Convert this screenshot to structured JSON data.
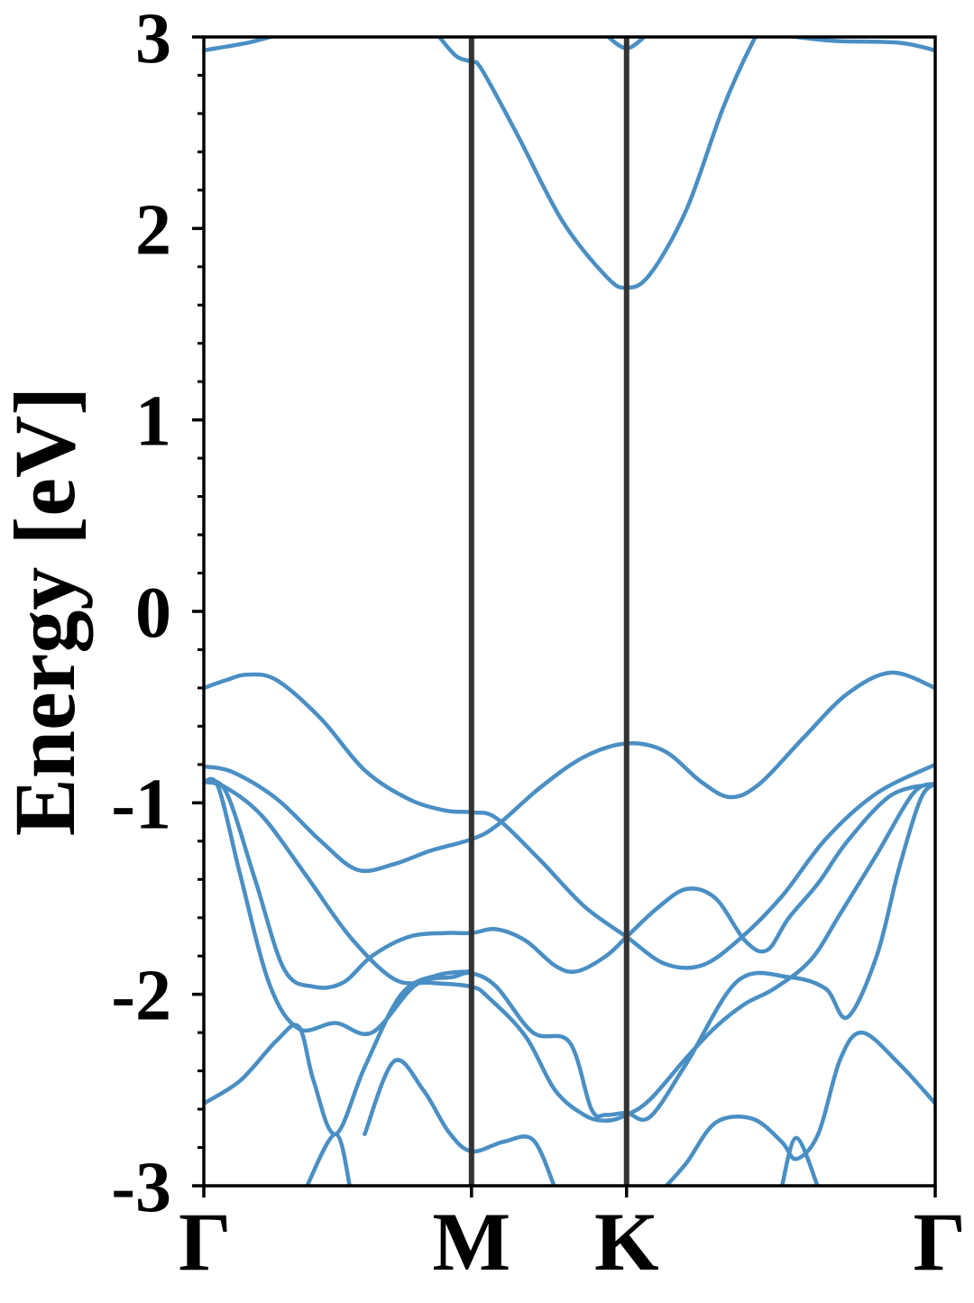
{
  "chart_data": {
    "type": "line",
    "title": "",
    "ylabel": "Energy [eV]",
    "xlabel": "",
    "ylim": [
      -3,
      3
    ],
    "yticks": [
      "3",
      "2",
      "1",
      "0",
      "-1",
      "-2",
      "-3"
    ],
    "ytick_values": [
      3,
      2,
      1,
      0,
      -1,
      -2,
      -3
    ],
    "yminor_step": 0.2,
    "x_is_kpath": true,
    "xticks": [
      "Γ",
      "M",
      "K",
      "Γ"
    ],
    "xtick_positions": [
      0.0,
      0.366,
      0.578,
      1.0
    ],
    "high_symmetry_lines": [
      0.366,
      0.578
    ],
    "line_color": "#4a8fc4",
    "symmetry_line_color": "#333333",
    "grid": false,
    "series": [
      {
        "values": [
          [
            0.0,
            2.93
          ],
          [
            0.06,
            2.97
          ],
          [
            0.1,
            3.01
          ]
        ]
      },
      {
        "values": [
          [
            0.32,
            3.01
          ],
          [
            0.345,
            2.9
          ],
          [
            0.366,
            2.87
          ],
          [
            0.38,
            2.83
          ],
          [
            0.43,
            2.48
          ],
          [
            0.49,
            2.04
          ],
          [
            0.55,
            1.75
          ],
          [
            0.578,
            1.69
          ],
          [
            0.61,
            1.76
          ],
          [
            0.66,
            2.1
          ],
          [
            0.71,
            2.63
          ],
          [
            0.75,
            2.97
          ],
          [
            0.76,
            3.01
          ]
        ]
      },
      {
        "values": [
          [
            0.55,
            3.01
          ],
          [
            0.578,
            2.94
          ],
          [
            0.605,
            3.01
          ]
        ]
      },
      {
        "values": [
          [
            0.79,
            3.01
          ],
          [
            0.86,
            2.98
          ],
          [
            0.95,
            2.97
          ],
          [
            1.0,
            2.93
          ]
        ]
      },
      {
        "values": [
          [
            0.0,
            -0.4
          ],
          [
            0.03,
            -0.36
          ],
          [
            0.06,
            -0.33
          ],
          [
            0.1,
            -0.36
          ],
          [
            0.16,
            -0.56
          ],
          [
            0.22,
            -0.83
          ],
          [
            0.28,
            -0.98
          ],
          [
            0.33,
            -1.04
          ],
          [
            0.366,
            -1.05
          ],
          [
            0.4,
            -1.08
          ],
          [
            0.46,
            -1.3
          ],
          [
            0.52,
            -1.54
          ],
          [
            0.578,
            -1.7
          ],
          [
            0.63,
            -1.84
          ],
          [
            0.68,
            -1.85
          ],
          [
            0.73,
            -1.72
          ],
          [
            0.79,
            -1.49
          ],
          [
            0.85,
            -1.19
          ],
          [
            0.92,
            -0.95
          ],
          [
            1.0,
            -0.8
          ]
        ]
      },
      {
        "values": [
          [
            0.0,
            -0.81
          ],
          [
            0.04,
            -0.84
          ],
          [
            0.1,
            -0.98
          ],
          [
            0.16,
            -1.2
          ],
          [
            0.21,
            -1.35
          ],
          [
            0.26,
            -1.32
          ],
          [
            0.31,
            -1.25
          ],
          [
            0.366,
            -1.19
          ],
          [
            0.4,
            -1.12
          ],
          [
            0.46,
            -0.92
          ],
          [
            0.52,
            -0.76
          ],
          [
            0.578,
            -0.69
          ],
          [
            0.63,
            -0.73
          ],
          [
            0.68,
            -0.89
          ],
          [
            0.72,
            -0.97
          ],
          [
            0.76,
            -0.9
          ],
          [
            0.82,
            -0.66
          ],
          [
            0.88,
            -0.43
          ],
          [
            0.94,
            -0.32
          ],
          [
            1.0,
            -0.4
          ]
        ]
      },
      {
        "values": [
          [
            0.0,
            -0.89
          ],
          [
            0.03,
            -0.92
          ],
          [
            0.08,
            -1.07
          ],
          [
            0.14,
            -1.38
          ],
          [
            0.2,
            -1.7
          ],
          [
            0.26,
            -1.92
          ],
          [
            0.31,
            -1.94
          ],
          [
            0.366,
            -1.96
          ],
          [
            0.39,
            -2.02
          ],
          [
            0.44,
            -2.22
          ],
          [
            0.48,
            -2.5
          ],
          [
            0.52,
            -2.63
          ],
          [
            0.55,
            -2.66
          ],
          [
            0.578,
            -2.63
          ],
          [
            0.61,
            -2.55
          ],
          [
            0.66,
            -2.33
          ],
          [
            0.7,
            -2.17
          ],
          [
            0.74,
            -2.05
          ],
          [
            0.78,
            -1.97
          ],
          [
            0.83,
            -1.82
          ],
          [
            0.87,
            -1.58
          ],
          [
            0.92,
            -1.27
          ],
          [
            0.97,
            -0.95
          ],
          [
            1.0,
            -0.9
          ]
        ]
      },
      {
        "values": [
          [
            0.0,
            -0.89
          ],
          [
            0.03,
            -0.94
          ],
          [
            0.07,
            -1.4
          ],
          [
            0.11,
            -1.87
          ],
          [
            0.15,
            -1.96
          ],
          [
            0.19,
            -1.94
          ],
          [
            0.23,
            -1.8
          ],
          [
            0.28,
            -1.7
          ],
          [
            0.33,
            -1.68
          ],
          [
            0.366,
            -1.68
          ],
          [
            0.4,
            -1.66
          ],
          [
            0.44,
            -1.72
          ],
          [
            0.48,
            -1.85
          ],
          [
            0.51,
            -1.88
          ],
          [
            0.55,
            -1.8
          ],
          [
            0.578,
            -1.7
          ],
          [
            0.62,
            -1.55
          ],
          [
            0.66,
            -1.45
          ],
          [
            0.7,
            -1.5
          ],
          [
            0.74,
            -1.72
          ],
          [
            0.77,
            -1.77
          ],
          [
            0.8,
            -1.6
          ],
          [
            0.84,
            -1.42
          ],
          [
            0.88,
            -1.2
          ],
          [
            0.94,
            -0.96
          ],
          [
            1.0,
            -0.9
          ]
        ]
      },
      {
        "values": [
          [
            0.0,
            -0.89
          ],
          [
            0.02,
            -0.92
          ],
          [
            0.05,
            -1.38
          ],
          [
            0.09,
            -1.95
          ],
          [
            0.13,
            -2.18
          ],
          [
            0.18,
            -2.15
          ],
          [
            0.23,
            -2.2
          ],
          [
            0.29,
            -1.95
          ],
          [
            0.34,
            -1.91
          ],
          [
            0.366,
            -1.89
          ],
          [
            0.4,
            -1.96
          ],
          [
            0.45,
            -2.2
          ],
          [
            0.5,
            -2.25
          ],
          [
            0.53,
            -2.6
          ],
          [
            0.55,
            -2.63
          ],
          [
            0.578,
            -2.62
          ],
          [
            0.61,
            -2.64
          ],
          [
            0.66,
            -2.36
          ],
          [
            0.73,
            -1.93
          ],
          [
            0.8,
            -1.91
          ],
          [
            0.85,
            -1.97
          ],
          [
            0.88,
            -2.12
          ],
          [
            0.92,
            -1.8
          ],
          [
            0.95,
            -1.35
          ],
          [
            0.98,
            -0.98
          ],
          [
            1.0,
            -0.9
          ]
        ]
      },
      {
        "values": [
          [
            0.0,
            -2.57
          ],
          [
            0.05,
            -2.45
          ],
          [
            0.1,
            -2.24
          ],
          [
            0.13,
            -2.17
          ],
          [
            0.15,
            -2.45
          ],
          [
            0.18,
            -2.73
          ],
          [
            0.22,
            -2.38
          ],
          [
            0.27,
            -2.0
          ],
          [
            0.32,
            -1.9
          ],
          [
            0.366,
            -1.88
          ]
        ]
      },
      {
        "values": [
          [
            0.22,
            -2.73
          ],
          [
            0.26,
            -2.35
          ],
          [
            0.3,
            -2.5
          ],
          [
            0.335,
            -2.72
          ],
          [
            0.366,
            -2.82
          ],
          [
            0.41,
            -2.77
          ],
          [
            0.45,
            -2.76
          ],
          [
            0.48,
            -3.01
          ]
        ]
      },
      {
        "values": [
          [
            0.63,
            -3.01
          ],
          [
            0.66,
            -2.88
          ],
          [
            0.7,
            -2.67
          ],
          [
            0.75,
            -2.65
          ],
          [
            0.79,
            -2.77
          ],
          [
            0.81,
            -2.86
          ],
          [
            0.84,
            -2.73
          ],
          [
            0.87,
            -2.34
          ],
          [
            0.9,
            -2.2
          ],
          [
            0.95,
            -2.36
          ],
          [
            1.0,
            -2.57
          ]
        ]
      },
      {
        "values": [
          [
            0.14,
            -3.01
          ],
          [
            0.18,
            -2.73
          ],
          [
            0.2,
            -3.01
          ]
        ]
      },
      {
        "values": [
          [
            0.79,
            -3.01
          ],
          [
            0.81,
            -2.75
          ],
          [
            0.84,
            -3.01
          ]
        ]
      }
    ]
  }
}
